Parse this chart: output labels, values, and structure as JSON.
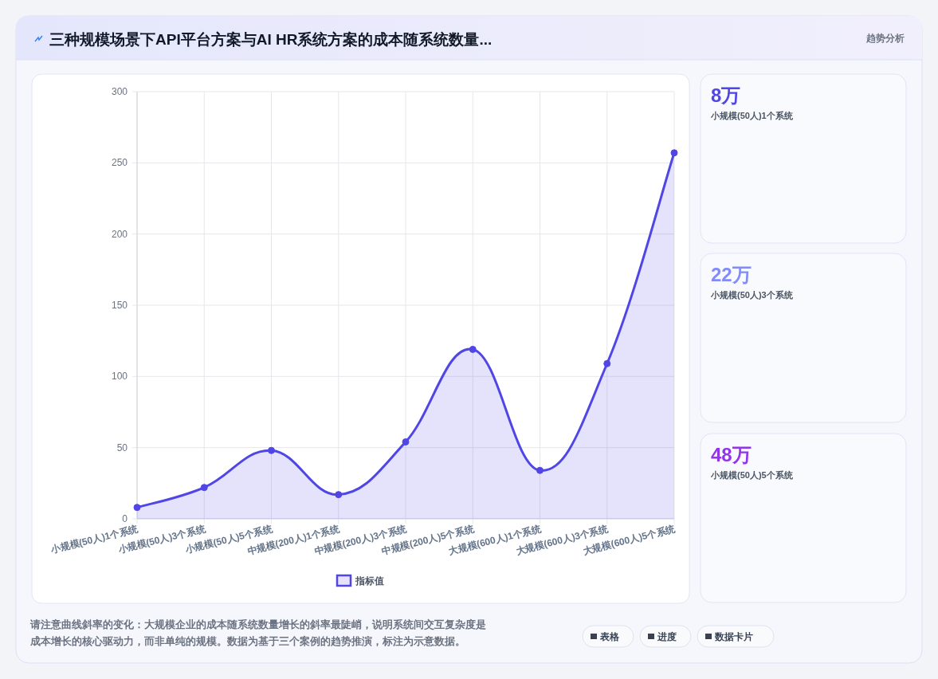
{
  "chart_data": [
    {
      "type": "line",
      "title": "三种规模场景下API平台方案与AI HR系统方案的成本随系统数量...",
      "categories": [
        "小规模(50人)1个系统",
        "小规模(50人)3个系统",
        "小规模(50人)5个系统",
        "中规模(200人)1个系统",
        "中规模(200人)3个系统",
        "中规模(200人)5个系统",
        "大规模(600人)1个系统",
        "大规模(600人)3个系统",
        "大规模(600人)5个系统"
      ],
      "series": [
        {
          "name": "指标值",
          "color": "#4f46e5",
          "type": "area",
          "values": [
            8,
            22,
            48,
            17,
            54,
            119,
            34,
            109,
            257
          ]
        }
      ],
      "ylim": [
        0,
        300
      ],
      "yticks": [
        0,
        50,
        100,
        150,
        200,
        250,
        300
      ],
      "grid": true,
      "legend": "bottom",
      "marker": "circle",
      "line_style": "solid",
      "annotations": [
        "趋势分析",
        "请注意曲线斜率的变化：大规模企业的成本随系统数量增长的斜率最陡峭，说明系统间交互复杂度是成本增长的核心驱动力，而非单纯的规模。数据为基于三个案例的趋势推演，标注为示意数据。",
        "表格",
        "进度",
        "数据卡片"
      ]
    },
    {
      "type": "other",
      "title": "8万",
      "subtitle": "小规模(50人)1个系统",
      "color": "#4f46e5"
    },
    {
      "type": "other",
      "title": "22万",
      "subtitle": "小规模(50人)3个系统",
      "color": "#818cf8"
    },
    {
      "type": "other",
      "title": "48万",
      "subtitle": "小规模(50人)5个系统",
      "color": "#9333ea"
    }
  ]
}
